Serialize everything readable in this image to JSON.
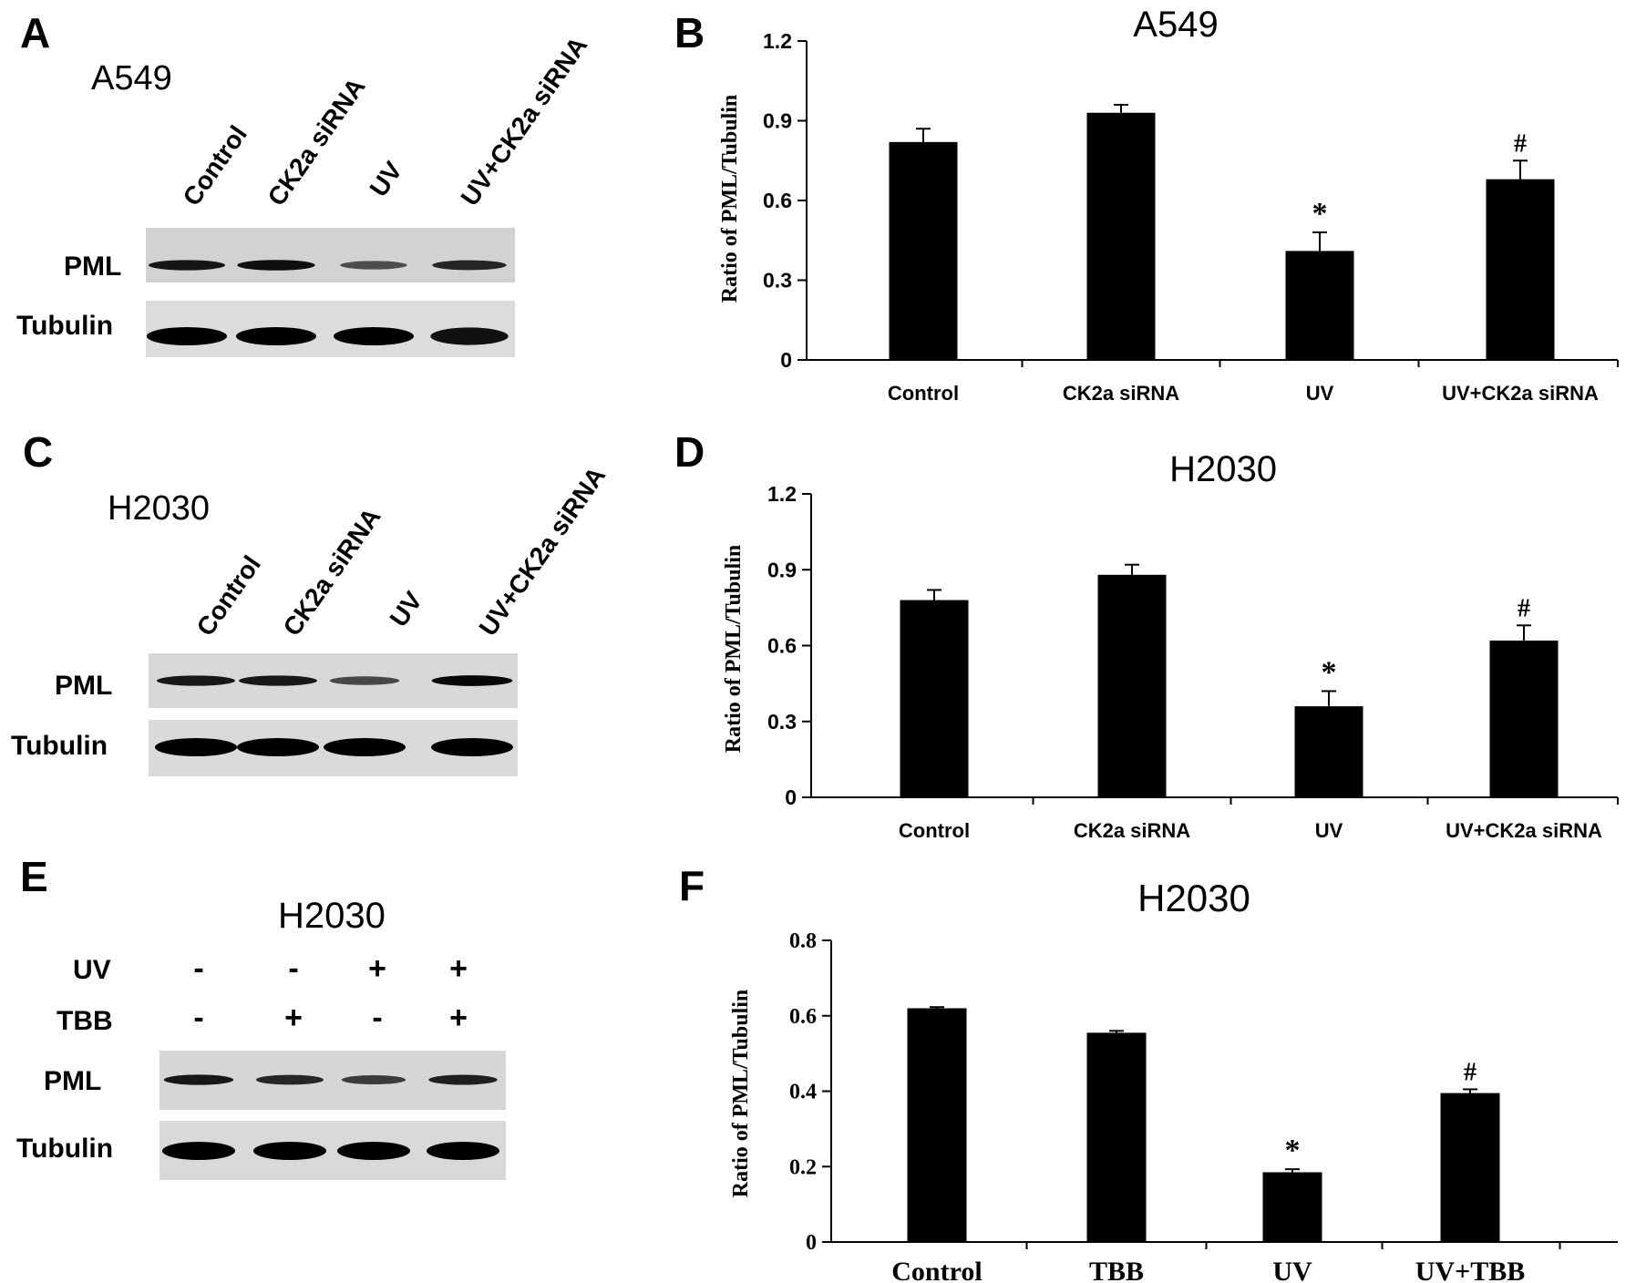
{
  "panels": [
    {
      "letter": "A",
      "cell_line": "A549",
      "lane_labels": [
        "Control",
        "CK2a siRNA",
        "UV",
        "UV+CK2a siRNA"
      ],
      "blot_rows": [
        "PML",
        "Tubulin"
      ]
    },
    {
      "letter": "C",
      "cell_line": "H2030",
      "lane_labels": [
        "Control",
        "CK2a siRNA",
        "UV",
        "UV+CK2a siRNA"
      ],
      "blot_rows": [
        "PML",
        "Tubulin"
      ]
    },
    {
      "letter": "E",
      "cell_line": "H2030",
      "treatment_rows": [
        {
          "label": "UV",
          "values": [
            "-",
            "-",
            "+",
            "+"
          ]
        },
        {
          "label": "TBB",
          "values": [
            "-",
            "+",
            "-",
            "+"
          ]
        }
      ],
      "blot_rows": [
        "PML",
        "Tubulin"
      ]
    }
  ],
  "blot_band_intensity": {
    "A": {
      "PML": [
        0.85,
        0.9,
        0.45,
        0.75
      ],
      "Tubulin": [
        1,
        1,
        1,
        0.9
      ]
    },
    "C": {
      "PML": [
        0.85,
        0.85,
        0.5,
        0.95
      ],
      "Tubulin": [
        1,
        1,
        1,
        1
      ]
    },
    "E": {
      "PML": [
        0.85,
        0.75,
        0.6,
        0.8
      ],
      "Tubulin": [
        1,
        1,
        1,
        1
      ]
    }
  },
  "chart_data": [
    {
      "panel": "B",
      "type": "bar",
      "title": "A549",
      "xlabel": "",
      "ylabel": "Ratio of PML/Tubulin",
      "categories": [
        "Control",
        "CK2a siRNA",
        "UV",
        "UV+CK2a siRNA"
      ],
      "values": [
        0.82,
        0.93,
        0.41,
        0.68
      ],
      "errors": [
        0.05,
        0.03,
        0.07,
        0.07
      ],
      "annotations": [
        "",
        "",
        "*",
        "#"
      ],
      "ylim": [
        0,
        1.2
      ],
      "yticks": [
        "0",
        "0.3",
        "0.6",
        "0.9",
        "1.2"
      ],
      "bar_color": "#000000"
    },
    {
      "panel": "D",
      "type": "bar",
      "title": "H2030",
      "xlabel": "",
      "ylabel": "Ratio of PML/Tubulin",
      "categories": [
        "Control",
        "CK2a siRNA",
        "UV",
        "UV+CK2a siRNA"
      ],
      "values": [
        0.78,
        0.88,
        0.36,
        0.62
      ],
      "errors": [
        0.04,
        0.04,
        0.06,
        0.06
      ],
      "annotations": [
        "",
        "",
        "*",
        "#"
      ],
      "ylim": [
        0,
        1.2
      ],
      "yticks": [
        "0",
        "0.3",
        "0.6",
        "0.9",
        "1.2"
      ],
      "bar_color": "#000000"
    },
    {
      "panel": "F",
      "type": "bar",
      "title": "H2030",
      "xlabel": "",
      "ylabel": "Ratio of PML/Tubulin",
      "categories": [
        "Control",
        "TBB",
        "UV",
        "UV+TBB"
      ],
      "values": [
        0.62,
        0.555,
        0.185,
        0.395
      ],
      "errors": [
        0.003,
        0.005,
        0.008,
        0.01
      ],
      "annotations": [
        "",
        "",
        "*",
        "#"
      ],
      "ylim": [
        0,
        0.8
      ],
      "yticks": [
        "0",
        "0.2",
        "0.4",
        "0.6",
        "0.8"
      ],
      "bar_color": "#000000"
    }
  ]
}
